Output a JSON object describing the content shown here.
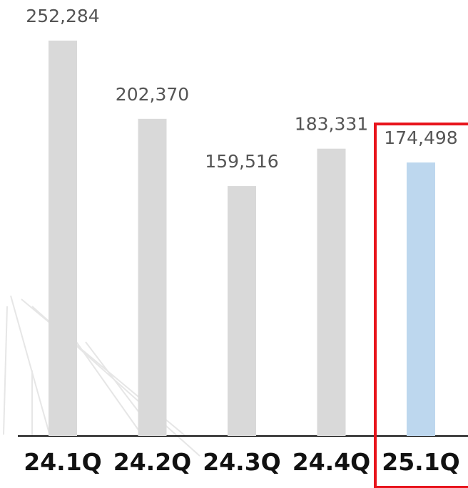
{
  "chart_data": {
    "type": "bar",
    "categories": [
      "24.1Q",
      "24.2Q",
      "24.3Q",
      "24.4Q",
      "25.1Q"
    ],
    "values": [
      252284,
      202370,
      159516,
      183331,
      174498
    ],
    "value_labels": [
      "252,284",
      "202,370",
      "159,516",
      "183,331",
      "174,498"
    ],
    "colors": [
      "#d9d9d9",
      "#d9d9d9",
      "#d9d9d9",
      "#d9d9d9",
      "#bdd7ee"
    ]
  }
}
